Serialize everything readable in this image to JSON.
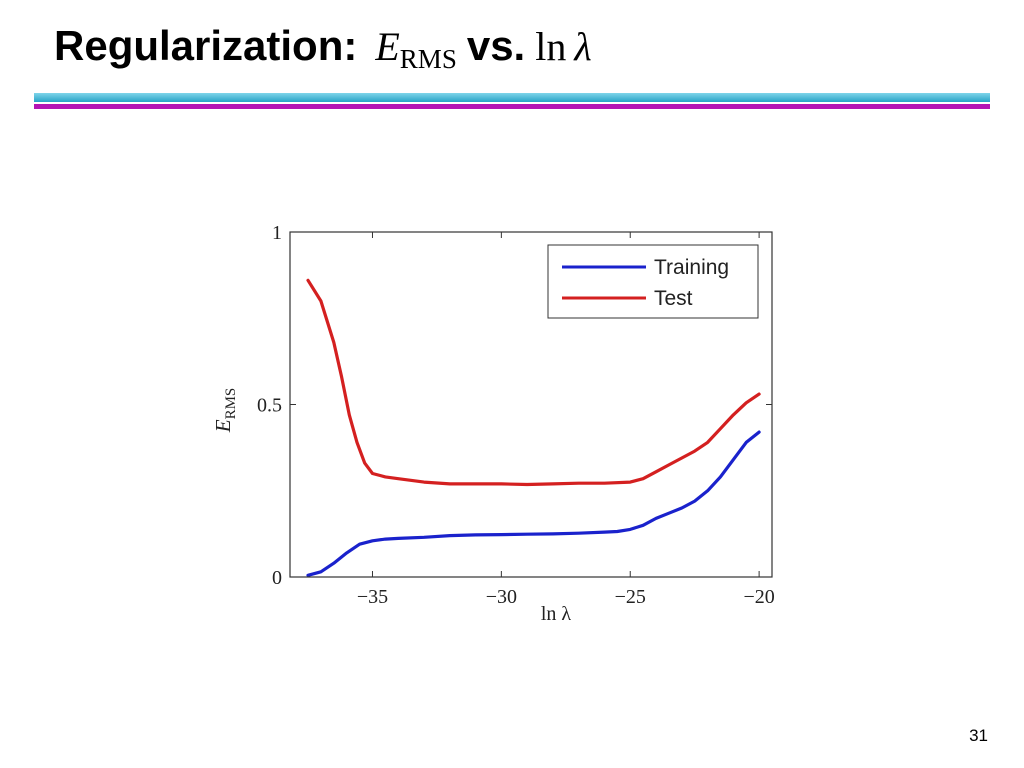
{
  "slide": {
    "title_prefix": "Regularization:",
    "title_sym_e": "E",
    "title_sym_rms": "RMS",
    "title_vs": "vs.",
    "title_sym_ln": "ln",
    "title_sym_lambda": "λ",
    "page_number": "31",
    "rule_colors": [
      "#27a3c6",
      "#b414b4"
    ]
  },
  "chart_data": {
    "type": "line",
    "xlabel": "ln λ",
    "ylabel_main": "E",
    "ylabel_sub": "RMS",
    "xlim": [
      -38.2,
      -19.5
    ],
    "ylim": [
      0,
      1
    ],
    "xticks": [
      -35,
      -30,
      -25,
      -20
    ],
    "xtick_labels": [
      "−35",
      "−30",
      "−25",
      "−20"
    ],
    "yticks": [
      0,
      0.5,
      1
    ],
    "ytick_labels": [
      "0",
      "0.5",
      "1"
    ],
    "grid": false,
    "legend_position": "top-right",
    "series": [
      {
        "name": "Training",
        "color": "#1a22cc",
        "x": [
          -37.5,
          -37.0,
          -36.5,
          -36.0,
          -35.5,
          -35.0,
          -34.5,
          -34.0,
          -33.0,
          -32.0,
          -31.0,
          -30.0,
          -29.0,
          -28.0,
          -27.0,
          -26.0,
          -25.5,
          -25.0,
          -24.5,
          -24.0,
          -23.5,
          -23.0,
          -22.5,
          -22.0,
          -21.5,
          -21.0,
          -20.5,
          -20.0
        ],
        "y": [
          0.005,
          0.015,
          0.04,
          0.07,
          0.095,
          0.105,
          0.11,
          0.112,
          0.115,
          0.12,
          0.122,
          0.123,
          0.124,
          0.125,
          0.127,
          0.13,
          0.132,
          0.138,
          0.15,
          0.17,
          0.185,
          0.2,
          0.22,
          0.25,
          0.29,
          0.34,
          0.39,
          0.42
        ]
      },
      {
        "name": "Test",
        "color": "#d42020",
        "x": [
          -37.5,
          -37.0,
          -36.5,
          -36.2,
          -35.9,
          -35.6,
          -35.3,
          -35.0,
          -34.5,
          -34.0,
          -33.0,
          -32.0,
          -31.0,
          -30.0,
          -29.0,
          -28.0,
          -27.0,
          -26.0,
          -25.0,
          -24.5,
          -24.0,
          -23.5,
          -23.0,
          -22.5,
          -22.0,
          -21.5,
          -21.0,
          -20.5,
          -20.0
        ],
        "y": [
          0.86,
          0.8,
          0.68,
          0.58,
          0.47,
          0.39,
          0.33,
          0.3,
          0.29,
          0.285,
          0.275,
          0.27,
          0.27,
          0.27,
          0.268,
          0.27,
          0.272,
          0.272,
          0.275,
          0.285,
          0.305,
          0.325,
          0.345,
          0.365,
          0.39,
          0.43,
          0.47,
          0.505,
          0.53
        ]
      }
    ]
  }
}
